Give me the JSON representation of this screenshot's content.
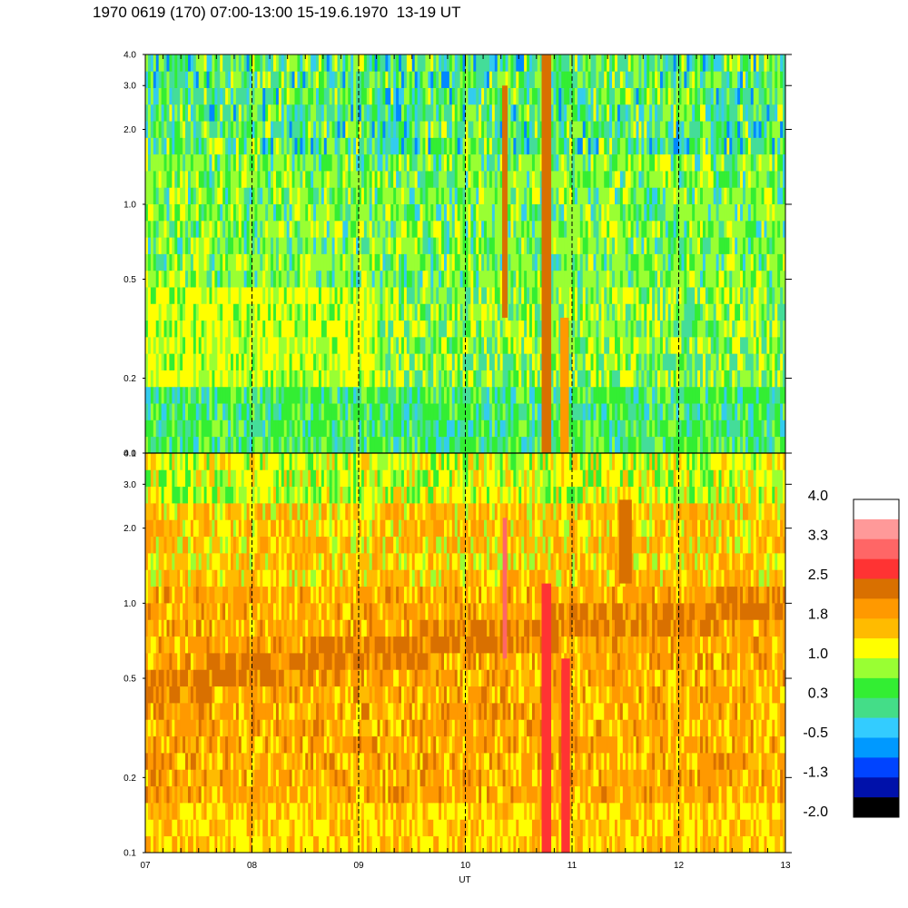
{
  "title": "1970 0619 (170) 07:00-13:00 15-19.6.1970  13-19 UT",
  "chart_data": {
    "type": "heatmap",
    "x": {
      "label": "UT",
      "range": [
        7,
        13
      ],
      "ticks": [
        "07",
        "08",
        "09",
        "10",
        "11",
        "12",
        "13"
      ],
      "tick_values": [
        7,
        8,
        9,
        10,
        11,
        12,
        13
      ],
      "minor_step": 0.1666667
    },
    "panels": [
      {
        "id": "upper",
        "y_scale": "log",
        "ylim": [
          0.1,
          4.0
        ],
        "y_ticks": [
          "0.1",
          "0.2",
          "0.5",
          "1.0",
          "2.0",
          "3.0",
          "4.0"
        ],
        "y_tick_values": [
          0.1,
          0.2,
          0.5,
          1.0,
          2.0,
          3.0,
          4.0
        ],
        "dominant_levels": [
          "green / cyan background",
          "yellow band near 0.2–0.35",
          "orange/red spikes near 10.4 and 10.8 UT"
        ]
      },
      {
        "id": "lower",
        "y_scale": "log",
        "ylim": [
          0.1,
          4.0
        ],
        "y_ticks": [
          "0.1",
          "0.2",
          "0.5",
          "1.0",
          "2.0",
          "3.0",
          "4.0"
        ],
        "y_tick_values": [
          0.1,
          0.2,
          0.5,
          1.0,
          2.0,
          3.0,
          4.0
        ],
        "dominant_levels": [
          "orange / yellow background",
          "dark orange band rising from ~0.45 at 07 UT to ~1.0 at 13 UT",
          "red spike near 10.8 UT"
        ]
      }
    ],
    "colorbar": {
      "labels": [
        "4.0",
        "3.3",
        "2.5",
        "1.8",
        "1.0",
        "0.3",
        "-0.5",
        "-1.3",
        "-2.0"
      ],
      "colors": [
        "#ffffff",
        "#ff9999",
        "#ff6666",
        "#ff3333",
        "#d97000",
        "#ff9900",
        "#ffbb00",
        "#ffff00",
        "#99ff33",
        "#33ee33",
        "#44dd88",
        "#33ccff",
        "#0099ff",
        "#0044ff",
        "#0011aa",
        "#000000"
      ]
    },
    "vertical_dashed_lines": [
      8,
      9,
      10,
      11,
      12
    ]
  }
}
